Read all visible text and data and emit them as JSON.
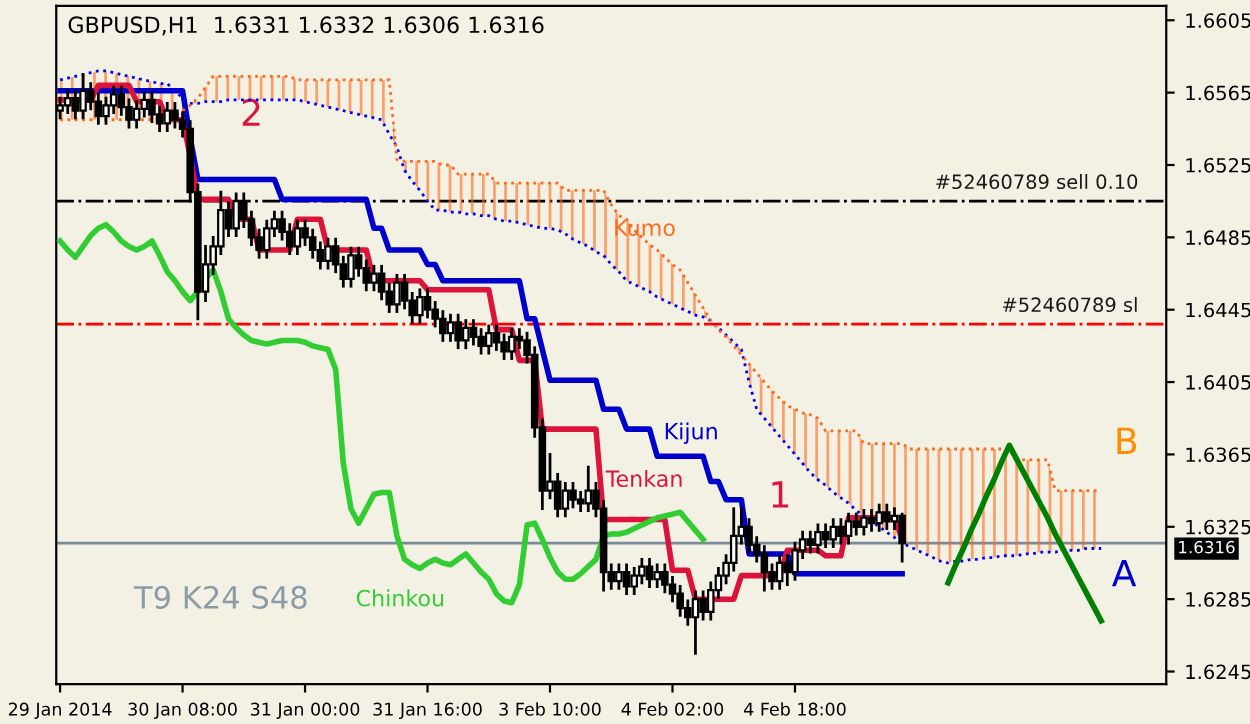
{
  "chart_data": {
    "type": "candlestick",
    "title": "GBPUSD,H1  1.6331 1.6332 1.6306 1.6316",
    "categories": [
      "29 Jan 2014",
      null,
      null,
      null,
      null,
      null,
      null,
      null,
      null,
      null,
      null,
      null,
      null,
      null,
      null,
      null,
      "30 Jan 08:00",
      null,
      null,
      null,
      null,
      null,
      null,
      null,
      null,
      null,
      null,
      null,
      null,
      null,
      null,
      null,
      "31 Jan 00:00",
      null,
      null,
      null,
      null,
      null,
      null,
      null,
      null,
      null,
      null,
      null,
      null,
      null,
      null,
      null,
      "31 Jan 16:00",
      null,
      null,
      null,
      null,
      null,
      null,
      null,
      null,
      null,
      null,
      null,
      null,
      null,
      null,
      null,
      "3 Feb 10:00",
      null,
      null,
      null,
      null,
      null,
      null,
      null,
      null,
      null,
      null,
      null,
      null,
      null,
      null,
      null,
      "4 Feb 02:00",
      null,
      null,
      null,
      null,
      null,
      null,
      null,
      null,
      null,
      null,
      null,
      null,
      null,
      null,
      null,
      "4 Feb 18:00",
      null,
      null,
      null,
      null,
      null,
      null,
      null,
      null,
      null,
      null,
      null,
      null,
      null,
      null,
      null,
      null,
      null,
      null,
      null,
      null,
      null,
      null,
      null,
      null,
      null,
      null,
      null,
      null,
      null,
      null,
      null,
      null,
      null,
      null,
      null,
      null,
      null,
      null,
      null,
      null,
      null,
      null,
      null,
      null,
      null,
      null,
      null,
      null
    ],
    "ohlc": [
      [
        1.6555,
        1.6562,
        1.6551,
        1.6558
      ],
      [
        1.6558,
        1.6566,
        1.6554,
        1.6562
      ],
      [
        1.6562,
        1.6566,
        1.6551,
        1.6555
      ],
      [
        1.6555,
        1.6575,
        1.6551,
        1.6566
      ],
      [
        1.6566,
        1.657,
        1.6556,
        1.656
      ],
      [
        1.656,
        1.6564,
        1.6548,
        1.6552
      ],
      [
        1.6552,
        1.6562,
        1.6548,
        1.6558
      ],
      [
        1.6558,
        1.6568,
        1.6554,
        1.6564
      ],
      [
        1.6564,
        1.6568,
        1.6553,
        1.6557
      ],
      [
        1.6557,
        1.6561,
        1.6546,
        1.655
      ],
      [
        1.655,
        1.656,
        1.6546,
        1.6556
      ],
      [
        1.6556,
        1.6565,
        1.6552,
        1.6561
      ],
      [
        1.6561,
        1.6565,
        1.6549,
        1.6553
      ],
      [
        1.6553,
        1.6557,
        1.6544,
        1.6548
      ],
      [
        1.6548,
        1.6559,
        1.6544,
        1.6555
      ],
      [
        1.6555,
        1.6559,
        1.6546,
        1.655
      ],
      [
        1.655,
        1.6554,
        1.6541,
        1.6545
      ],
      [
        1.6545,
        1.6549,
        1.6505,
        1.651
      ],
      [
        1.651,
        1.6514,
        1.644,
        1.6455
      ],
      [
        1.6455,
        1.648,
        1.645,
        1.647
      ],
      [
        1.647,
        1.6485,
        1.6465,
        1.648
      ],
      [
        1.648,
        1.651,
        1.6476,
        1.65
      ],
      [
        1.65,
        1.6504,
        1.6486,
        1.649
      ],
      [
        1.649,
        1.6509,
        1.6486,
        1.6505
      ],
      [
        1.6505,
        1.6509,
        1.6491,
        1.6495
      ],
      [
        1.6495,
        1.6499,
        1.6481,
        1.6485
      ],
      [
        1.6485,
        1.6489,
        1.6474,
        1.6478
      ],
      [
        1.6478,
        1.6494,
        1.6474,
        1.649
      ],
      [
        1.649,
        1.6499,
        1.6486,
        1.6495
      ],
      [
        1.6495,
        1.6499,
        1.6484,
        1.6488
      ],
      [
        1.6488,
        1.6492,
        1.6476,
        1.648
      ],
      [
        1.648,
        1.6494,
        1.6476,
        1.649
      ],
      [
        1.649,
        1.6494,
        1.6481,
        1.6485
      ],
      [
        1.6485,
        1.6489,
        1.6474,
        1.6478
      ],
      [
        1.6478,
        1.6482,
        1.6468,
        1.6472
      ],
      [
        1.6472,
        1.6484,
        1.6468,
        1.648
      ],
      [
        1.648,
        1.6484,
        1.6466,
        1.647
      ],
      [
        1.647,
        1.6474,
        1.6458,
        1.6462
      ],
      [
        1.6462,
        1.6479,
        1.6458,
        1.6475
      ],
      [
        1.6475,
        1.6479,
        1.6464,
        1.6468
      ],
      [
        1.6468,
        1.6472,
        1.6456,
        1.646
      ],
      [
        1.646,
        1.6469,
        1.6456,
        1.6465
      ],
      [
        1.6465,
        1.6469,
        1.6451,
        1.6455
      ],
      [
        1.6455,
        1.6459,
        1.6444,
        1.6448
      ],
      [
        1.6448,
        1.6464,
        1.6444,
        1.646
      ],
      [
        1.646,
        1.6464,
        1.6446,
        1.645
      ],
      [
        1.645,
        1.6454,
        1.6438,
        1.6442
      ],
      [
        1.6442,
        1.6456,
        1.6438,
        1.6452
      ],
      [
        1.6452,
        1.6456,
        1.6441,
        1.6445
      ],
      [
        1.6445,
        1.6449,
        1.6436,
        1.644
      ],
      [
        1.644,
        1.6444,
        1.6428,
        1.6432
      ],
      [
        1.6432,
        1.6442,
        1.6428,
        1.6438
      ],
      [
        1.6438,
        1.6442,
        1.6424,
        1.6428
      ],
      [
        1.6428,
        1.6439,
        1.6424,
        1.6435
      ],
      [
        1.6435,
        1.6439,
        1.6426,
        1.643
      ],
      [
        1.643,
        1.6434,
        1.6421,
        1.6425
      ],
      [
        1.6425,
        1.6436,
        1.6421,
        1.6432
      ],
      [
        1.6432,
        1.6436,
        1.6423,
        1.6427
      ],
      [
        1.6427,
        1.6431,
        1.6418,
        1.6422
      ],
      [
        1.6422,
        1.6434,
        1.6418,
        1.643
      ],
      [
        1.643,
        1.6434,
        1.6424,
        1.6428
      ],
      [
        1.6428,
        1.6432,
        1.6416,
        1.642
      ],
      [
        1.642,
        1.6424,
        1.6375,
        1.638
      ],
      [
        1.638,
        1.6384,
        1.6335,
        1.6345
      ],
      [
        1.6345,
        1.6365,
        1.6341,
        1.635
      ],
      [
        1.635,
        1.6354,
        1.6331,
        1.6335
      ],
      [
        1.6335,
        1.6349,
        1.6331,
        1.6345
      ],
      [
        1.6345,
        1.6349,
        1.6336,
        1.634
      ],
      [
        1.634,
        1.6344,
        1.6334,
        1.6338
      ],
      [
        1.6338,
        1.6358,
        1.6334,
        1.6345
      ],
      [
        1.6345,
        1.6349,
        1.6331,
        1.6335
      ],
      [
        1.6335,
        1.6339,
        1.629,
        1.63
      ],
      [
        1.63,
        1.6304,
        1.6291,
        1.6295
      ],
      [
        1.6295,
        1.6304,
        1.6291,
        1.63
      ],
      [
        1.63,
        1.6304,
        1.6288,
        1.6292
      ],
      [
        1.6292,
        1.6302,
        1.6288,
        1.6298
      ],
      [
        1.6298,
        1.6307,
        1.6294,
        1.6303
      ],
      [
        1.6303,
        1.6307,
        1.6292,
        1.6296
      ],
      [
        1.6296,
        1.6304,
        1.6292,
        1.63
      ],
      [
        1.63,
        1.6304,
        1.6289,
        1.6293
      ],
      [
        1.6293,
        1.6297,
        1.6284,
        1.6288
      ],
      [
        1.6288,
        1.6292,
        1.6276,
        1.628
      ],
      [
        1.628,
        1.6284,
        1.6271,
        1.6275
      ],
      [
        1.6275,
        1.6289,
        1.6255,
        1.6285
      ],
      [
        1.6285,
        1.6289,
        1.6274,
        1.6278
      ],
      [
        1.6278,
        1.6294,
        1.6274,
        1.629
      ],
      [
        1.629,
        1.6302,
        1.6286,
        1.6298
      ],
      [
        1.6298,
        1.6309,
        1.6294,
        1.6305
      ],
      [
        1.6305,
        1.6335,
        1.6301,
        1.632
      ],
      [
        1.632,
        1.6335,
        1.6316,
        1.6325
      ],
      [
        1.6325,
        1.6329,
        1.6311,
        1.6315
      ],
      [
        1.6315,
        1.6319,
        1.6306,
        1.631
      ],
      [
        1.631,
        1.6314,
        1.629,
        1.63
      ],
      [
        1.63,
        1.6304,
        1.6291,
        1.6295
      ],
      [
        1.6295,
        1.6309,
        1.6291,
        1.6305
      ],
      [
        1.6305,
        1.6309,
        1.6293,
        1.63
      ],
      [
        1.63,
        1.6316,
        1.6296,
        1.6312
      ],
      [
        1.6312,
        1.6322,
        1.6308,
        1.6318
      ],
      [
        1.6318,
        1.6322,
        1.6311,
        1.6315
      ],
      [
        1.6315,
        1.6326,
        1.6311,
        1.6322
      ],
      [
        1.6322,
        1.6326,
        1.6314,
        1.6318
      ],
      [
        1.6318,
        1.6329,
        1.6314,
        1.6325
      ],
      [
        1.6325,
        1.6329,
        1.6316,
        1.632
      ],
      [
        1.632,
        1.6332,
        1.6316,
        1.6328
      ],
      [
        1.6328,
        1.6332,
        1.6321,
        1.6325
      ],
      [
        1.6325,
        1.6334,
        1.6321,
        1.633
      ],
      [
        1.633,
        1.6334,
        1.6323,
        1.6327
      ],
      [
        1.6327,
        1.6337,
        1.6323,
        1.6333
      ],
      [
        1.6333,
        1.6337,
        1.6324,
        1.6328
      ],
      [
        1.6328,
        1.6335,
        1.6324,
        1.6331
      ],
      [
        1.6331,
        1.6332,
        1.6306,
        1.6316
      ],
      null,
      null,
      null,
      null,
      null,
      null,
      null,
      null,
      null,
      null,
      null,
      null,
      null,
      null,
      null,
      null,
      null,
      null,
      null,
      null,
      null,
      null,
      null,
      null,
      null,
      null,
      null,
      null,
      null,
      null,
      null,
      null,
      null,
      null
    ],
    "series": [
      {
        "type": "line",
        "color": "#0000cd",
        "values": [
          1.6566,
          1.6566,
          1.6566,
          1.6566,
          1.6566,
          1.6566,
          1.6566,
          1.6566,
          1.6566,
          1.6566,
          1.6566,
          1.6566,
          1.6566,
          1.6566,
          1.6566,
          1.6566,
          1.6566,
          1.654,
          1.6517,
          1.6517,
          1.6517,
          1.6517,
          1.6517,
          1.6517,
          1.6517,
          1.6517,
          1.6517,
          1.6517,
          1.6517,
          1.6506,
          1.6506,
          1.6506,
          1.6506,
          1.6506,
          1.6506,
          1.6506,
          1.6506,
          1.6506,
          1.6506,
          1.6506,
          1.6506,
          1.649,
          1.649,
          1.6478,
          1.6478,
          1.6478,
          1.6478,
          1.6478,
          1.647,
          1.647,
          1.6461,
          1.6461,
          1.6461,
          1.6461,
          1.6461,
          1.6461,
          1.6461,
          1.6461,
          1.6461,
          1.6461,
          1.6461,
          1.644,
          1.644,
          1.6423,
          1.6406,
          1.6406,
          1.6406,
          1.6406,
          1.6406,
          1.6406,
          1.6406,
          1.639,
          1.639,
          1.639,
          1.6379,
          1.6379,
          1.6379,
          1.6379,
          1.6364,
          1.6364,
          1.6364,
          1.6364,
          1.6364,
          1.6364,
          1.6364,
          1.635,
          1.635,
          1.634,
          1.634,
          1.634,
          1.631,
          1.631,
          1.631,
          1.631,
          1.631,
          1.631,
          1.6299,
          1.6299,
          1.6299,
          1.6299,
          1.6299,
          1.6299,
          1.6299,
          1.6299,
          1.6299,
          1.6299,
          1.6299,
          1.6299,
          1.6299,
          1.6299,
          1.6299,
          null,
          null,
          null,
          null,
          null,
          null,
          null,
          null,
          null,
          null,
          null,
          null,
          null,
          null,
          null,
          null,
          null,
          null,
          null,
          null,
          null,
          null,
          null,
          null,
          null,
          null,
          null,
          null,
          null,
          null,
          null,
          null,
          null,
          null
        ]
      },
      {
        "type": "line",
        "color": "#dc143c",
        "values": [
          1.6561,
          1.6561,
          1.6561,
          1.6561,
          1.6561,
          1.6569,
          1.6569,
          1.6569,
          1.6569,
          1.6569,
          1.656,
          1.656,
          1.656,
          1.656,
          1.655,
          1.655,
          1.655,
          1.653,
          1.6506,
          1.6506,
          1.6506,
          1.6506,
          1.6506,
          1.6495,
          1.6495,
          1.6495,
          1.6478,
          1.6478,
          1.6478,
          1.6478,
          1.6478,
          1.6495,
          1.6495,
          1.6495,
          1.6495,
          1.6478,
          1.6478,
          1.6478,
          1.6478,
          1.6478,
          1.6478,
          1.6461,
          1.6461,
          1.6461,
          1.6461,
          1.6461,
          1.6461,
          1.6461,
          1.6456,
          1.6456,
          1.6456,
          1.6456,
          1.6456,
          1.6456,
          1.6456,
          1.6456,
          1.6456,
          1.6434,
          1.6434,
          1.6434,
          1.6417,
          1.6417,
          1.6417,
          1.6379,
          1.6379,
          1.6379,
          1.6379,
          1.6379,
          1.6379,
          1.6379,
          1.6379,
          1.6329,
          1.6329,
          1.6329,
          1.6329,
          1.6329,
          1.6329,
          1.6329,
          1.6329,
          1.6329,
          1.6301,
          1.6301,
          1.6301,
          1.6285,
          1.6285,
          1.6285,
          1.6285,
          1.6285,
          1.6285,
          1.6298,
          1.6298,
          1.6298,
          1.6298,
          1.6298,
          1.6298,
          1.6312,
          1.6312,
          1.6312,
          1.6312,
          1.6312,
          1.6309,
          1.6309,
          1.6309,
          1.633,
          1.633,
          1.633,
          1.633,
          1.633,
          1.633,
          1.633,
          1.6318,
          null,
          null,
          null,
          null,
          null,
          null,
          null,
          null,
          null,
          null,
          null,
          null,
          null,
          null,
          null,
          null,
          null,
          null,
          null,
          null,
          null,
          null,
          null,
          null,
          null,
          null,
          null,
          null,
          null,
          null,
          null,
          null,
          null,
          null
        ]
      },
      {
        "type": "line",
        "color": "#32cd32",
        "values": [
          1.6483,
          1.6478,
          1.6474,
          1.648,
          1.6486,
          1.649,
          1.6492,
          1.6488,
          1.6483,
          1.648,
          1.6478,
          1.648,
          1.6483,
          1.6475,
          1.6466,
          1.6461,
          1.6455,
          1.645,
          1.6455,
          1.6462,
          1.6467,
          1.6455,
          1.644,
          1.6435,
          1.6431,
          1.6428,
          1.6427,
          1.6426,
          1.6427,
          1.6428,
          1.6428,
          1.6428,
          1.6427,
          1.6425,
          1.6424,
          1.6423,
          1.6412,
          1.636,
          1.6335,
          1.6327,
          1.6335,
          1.6343,
          1.6344,
          1.6344,
          1.632,
          1.6307,
          1.6304,
          1.6302,
          1.6305,
          1.6307,
          1.6305,
          1.6304,
          1.6307,
          1.631,
          1.6305,
          1.63,
          1.6296,
          1.6288,
          1.6284,
          1.6283,
          1.6293,
          1.6326,
          1.6327,
          1.6318,
          1.6308,
          1.63,
          1.6296,
          1.6296,
          1.6299,
          1.6303,
          1.6307,
          1.632,
          1.6321,
          1.6321,
          1.6322,
          1.6324,
          1.6326,
          1.6328,
          1.633,
          1.6331,
          1.6332,
          1.6333,
          1.6328,
          1.6323,
          1.6318,
          null,
          null,
          null,
          null,
          null,
          null,
          null,
          null,
          null,
          null,
          null,
          null,
          null,
          null,
          null,
          null,
          null,
          null,
          null,
          null,
          null,
          null,
          null,
          null,
          null,
          null,
          null,
          null,
          null,
          null,
          null,
          null,
          null,
          null,
          null,
          null,
          null,
          null,
          null,
          null,
          null,
          null,
          null,
          null,
          null,
          null,
          null,
          null,
          null,
          null,
          null,
          null,
          null,
          null,
          null,
          null,
          null,
          null,
          null,
          null
        ]
      },
      {
        "type": "line",
        "color": "#0000ff",
        "line_style": "dotted",
        "values": [
          1.6572,
          1.6573,
          1.6574,
          1.6575,
          1.6576,
          1.6577,
          1.6577,
          1.6576,
          1.6575,
          1.6574,
          1.6573,
          1.6572,
          1.6571,
          1.657,
          1.657,
          1.6566,
          1.6562,
          1.6559,
          1.6559,
          1.656,
          1.656,
          1.656,
          1.6561,
          1.6561,
          1.6561,
          1.6561,
          1.6561,
          1.6561,
          1.6561,
          1.6561,
          1.6561,
          1.6561,
          1.656,
          1.6559,
          1.6558,
          1.6557,
          1.6556,
          1.6555,
          1.6554,
          1.6553,
          1.6552,
          1.6551,
          1.655,
          1.6542,
          1.6535,
          1.6522,
          1.6516,
          1.6511,
          1.6505,
          1.65,
          1.65,
          1.6499,
          1.6499,
          1.6498,
          1.6498,
          1.6497,
          1.6497,
          1.6495,
          1.6494,
          1.6494,
          1.6493,
          1.6492,
          1.6491,
          1.649,
          1.649,
          1.6489,
          1.6487,
          1.6484,
          1.6482,
          1.648,
          1.6477,
          1.6475,
          1.647,
          1.6466,
          1.6461,
          1.6459,
          1.6457,
          1.6455,
          1.6452,
          1.645,
          1.6448,
          1.6446,
          1.6444,
          1.6442,
          1.6441,
          1.6439,
          1.6435,
          1.6431,
          1.6427,
          1.6423,
          1.6405,
          1.639,
          1.6385,
          1.638,
          1.6375,
          1.637,
          1.6365,
          1.636,
          1.6355,
          1.6351,
          1.6348,
          1.6344,
          1.6341,
          1.6338,
          1.6334,
          1.6331,
          1.6328,
          1.6325,
          1.6322,
          1.6319,
          1.6316,
          1.6314,
          1.6312,
          1.631,
          1.6308,
          1.6306,
          1.6305,
          1.6306,
          1.6306,
          1.6307,
          1.6307,
          1.6308,
          1.6308,
          1.6309,
          1.6309,
          1.6309,
          1.631,
          1.631,
          1.6311,
          1.6311,
          1.6311,
          1.6312,
          1.6312,
          1.6312,
          1.6313,
          1.6313,
          1.6313,
          null,
          null,
          null,
          null,
          null,
          null,
          null,
          null
        ]
      },
      {
        "type": "line",
        "color": "#ff6a1a",
        "line_style": "dotted",
        "values": [
          1.655,
          1.655,
          1.655,
          1.655,
          1.655,
          1.655,
          1.655,
          1.655,
          1.655,
          1.655,
          1.655,
          1.655,
          1.655,
          1.655,
          1.655,
          1.6552,
          1.6555,
          1.6558,
          1.6562,
          1.6568,
          1.6574,
          1.6574,
          1.6574,
          1.6574,
          1.6574,
          1.6574,
          1.6574,
          1.6574,
          1.6574,
          1.6574,
          1.6574,
          1.6572,
          1.6572,
          1.6572,
          1.6572,
          1.6572,
          1.6572,
          1.6572,
          1.6572,
          1.6572,
          1.6572,
          1.6572,
          1.6572,
          1.6572,
          1.6528,
          1.6527,
          1.6527,
          1.6527,
          1.6527,
          1.6527,
          1.6525,
          1.6525,
          1.652,
          1.652,
          1.652,
          1.652,
          1.652,
          1.6515,
          1.6515,
          1.6515,
          1.6515,
          1.6515,
          1.6515,
          1.6515,
          1.6515,
          1.6515,
          1.6511,
          1.6511,
          1.6511,
          1.6511,
          1.6511,
          1.6511,
          1.6503,
          1.6497,
          1.6495,
          1.6489,
          1.6485,
          1.6481,
          1.6478,
          1.6474,
          1.647,
          1.6467,
          1.646,
          1.6453,
          1.6446,
          1.6439,
          1.6434,
          1.643,
          1.6425,
          1.642,
          1.6415,
          1.641,
          1.6405,
          1.64,
          1.6396,
          1.6392,
          1.639,
          1.6388,
          1.6387,
          1.6385,
          1.6378,
          1.6378,
          1.6378,
          1.6378,
          1.6378,
          1.6371,
          1.6371,
          1.6371,
          1.6371,
          1.6371,
          1.6371,
          1.6368,
          1.6368,
          1.6368,
          1.6368,
          1.6368,
          1.6368,
          1.6368,
          1.6368,
          1.6368,
          1.6368,
          1.6368,
          1.6368,
          1.6368,
          1.6368,
          1.6362,
          1.6362,
          1.6362,
          1.6362,
          1.6362,
          1.6345,
          1.6345,
          1.6345,
          1.6345,
          1.6345,
          1.6345,
          1.6345,
          null,
          null,
          null,
          null,
          null,
          null,
          null,
          null
        ],
        "lower": [
          1.6572,
          1.6573,
          1.6574,
          1.6575,
          1.6576,
          1.6577,
          1.6577,
          1.6576,
          1.6575,
          1.6574,
          1.6573,
          1.6572,
          1.6571,
          1.657,
          1.657,
          1.6566,
          1.6562,
          1.6559,
          1.6559,
          1.656,
          1.656,
          1.656,
          1.6561,
          1.6561,
          1.6561,
          1.6561,
          1.6561,
          1.6561,
          1.6561,
          1.6561,
          1.6561,
          1.6561,
          1.656,
          1.6559,
          1.6558,
          1.6557,
          1.6556,
          1.6555,
          1.6554,
          1.6553,
          1.6552,
          1.6551,
          1.655,
          1.6542,
          1.6535,
          1.6522,
          1.6516,
          1.6511,
          1.6505,
          1.65,
          1.65,
          1.6499,
          1.6499,
          1.6498,
          1.6498,
          1.6497,
          1.6497,
          1.6495,
          1.6494,
          1.6494,
          1.6493,
          1.6492,
          1.6491,
          1.649,
          1.649,
          1.6489,
          1.6487,
          1.6484,
          1.6482,
          1.648,
          1.6477,
          1.6475,
          1.647,
          1.6466,
          1.6461,
          1.6459,
          1.6457,
          1.6455,
          1.6452,
          1.645,
          1.6448,
          1.6446,
          1.6444,
          1.6442,
          1.6441,
          1.6439,
          1.6435,
          1.6431,
          1.6427,
          1.6423,
          1.6405,
          1.639,
          1.6385,
          1.638,
          1.6375,
          1.637,
          1.6365,
          1.636,
          1.6355,
          1.6351,
          1.6348,
          1.6344,
          1.6341,
          1.6338,
          1.6334,
          1.6331,
          1.6328,
          1.6325,
          1.6322,
          1.6319,
          1.6316,
          1.6314,
          1.6312,
          1.631,
          1.6308,
          1.6306,
          1.6305,
          1.6306,
          1.6306,
          1.6307,
          1.6307,
          1.6308,
          1.6308,
          1.6309,
          1.6309,
          1.6309,
          1.631,
          1.631,
          1.6311,
          1.6311,
          1.6311,
          1.6312,
          1.6312,
          1.6312,
          1.6313,
          1.6313,
          1.6313,
          null,
          null,
          null,
          null,
          null,
          null,
          null,
          null
        ],
        "upper": [
          1.655,
          1.655,
          1.655,
          1.655,
          1.655,
          1.655,
          1.655,
          1.655,
          1.655,
          1.655,
          1.655,
          1.655,
          1.655,
          1.655,
          1.655,
          1.6552,
          1.6555,
          1.6558,
          1.6562,
          1.6568,
          1.6574,
          1.6574,
          1.6574,
          1.6574,
          1.6574,
          1.6574,
          1.6574,
          1.6574,
          1.6574,
          1.6574,
          1.6574,
          1.6572,
          1.6572,
          1.6572,
          1.6572,
          1.6572,
          1.6572,
          1.6572,
          1.6572,
          1.6572,
          1.6572,
          1.6572,
          1.6572,
          1.6572,
          1.6528,
          1.6527,
          1.6527,
          1.6527,
          1.6527,
          1.6527,
          1.6525,
          1.6525,
          1.652,
          1.652,
          1.652,
          1.652,
          1.652,
          1.6515,
          1.6515,
          1.6515,
          1.6515,
          1.6515,
          1.6515,
          1.6515,
          1.6515,
          1.6515,
          1.6511,
          1.6511,
          1.6511,
          1.6511,
          1.6511,
          1.6511,
          1.6503,
          1.6497,
          1.6495,
          1.6489,
          1.6485,
          1.6481,
          1.6478,
          1.6474,
          1.647,
          1.6467,
          1.646,
          1.6453,
          1.6446,
          1.6439,
          1.6434,
          1.643,
          1.6425,
          1.642,
          1.6415,
          1.641,
          1.6405,
          1.64,
          1.6396,
          1.6392,
          1.639,
          1.6388,
          1.6387,
          1.6385,
          1.6378,
          1.6378,
          1.6378,
          1.6378,
          1.6378,
          1.6371,
          1.6371,
          1.6371,
          1.6371,
          1.6371,
          1.6371,
          1.6368,
          1.6368,
          1.6368,
          1.6368,
          1.6368,
          1.6368,
          1.6368,
          1.6368,
          1.6368,
          1.6368,
          1.6368,
          1.6368,
          1.6368,
          1.6368,
          1.6362,
          1.6362,
          1.6362,
          1.6362,
          1.6362,
          1.6345,
          1.6345,
          1.6345,
          1.6345,
          1.6345,
          1.6345,
          1.6345,
          null,
          null,
          null,
          null,
          null,
          null,
          null,
          null
        ]
      },
      {
        "type": "line",
        "color": "#008000",
        "values": [
          null,
          null,
          null,
          null,
          null,
          null,
          null,
          null,
          null,
          null,
          null,
          null,
          null,
          null,
          null,
          null,
          null,
          null,
          null,
          null,
          null,
          null,
          null,
          null,
          null,
          null,
          null,
          null,
          null,
          null,
          null,
          null,
          null,
          null,
          null,
          null,
          null,
          null,
          null,
          null,
          null,
          null,
          null,
          null,
          null,
          null,
          null,
          null,
          null,
          null,
          null,
          null,
          null,
          null,
          null,
          null,
          null,
          null,
          null,
          null,
          null,
          null,
          null,
          null,
          null,
          null,
          null,
          null,
          null,
          null,
          null,
          null,
          null,
          null,
          null,
          null,
          null,
          null,
          null,
          null,
          null,
          null,
          null,
          null,
          null,
          null,
          null,
          null,
          null,
          null,
          null,
          null,
          null,
          null,
          null,
          null,
          null,
          null,
          null,
          null,
          null,
          null,
          null,
          null,
          null,
          null,
          null,
          null,
          null,
          null,
          null,
          null,
          null,
          null,
          null,
          null,
          1.6294,
          1.6304,
          1.6313,
          1.6323,
          1.6332,
          1.6342,
          1.6351,
          1.6361,
          1.637,
          1.6362,
          1.6354,
          1.6346,
          1.6338,
          1.633,
          1.6321,
          1.6313,
          1.6305,
          1.6297,
          1.6289,
          1.6281,
          1.6273,
          null,
          null,
          null,
          null,
          null,
          null,
          null,
          null
        ]
      }
    ],
    "ylim": [
      1.6238,
      1.6613
    ],
    "yticks": [
      1.6245,
      1.6285,
      1.6325,
      1.6365,
      1.6405,
      1.6445,
      1.6485,
      1.6525,
      1.6565,
      1.6605
    ],
    "ref_lines": [
      {
        "axis": "y",
        "value": 1.6505,
        "label": "#52460789 sell 0.10",
        "color": "#000000",
        "line_style": "dashdot"
      },
      {
        "axis": "y",
        "value": 1.6437,
        "label": "#52460789 sl",
        "color": "#ff0000",
        "line_style": "dashdot"
      },
      {
        "axis": "y",
        "value": 1.6316,
        "label": "1.6316",
        "color": "#7a8a9a",
        "line_style": "solid"
      }
    ],
    "annotations": [
      "Kumo",
      "Kijun",
      "Tenkan",
      "Chinkou",
      "1",
      "2",
      "B",
      "A",
      "T9 K24 S48"
    ],
    "grid": false
  }
}
